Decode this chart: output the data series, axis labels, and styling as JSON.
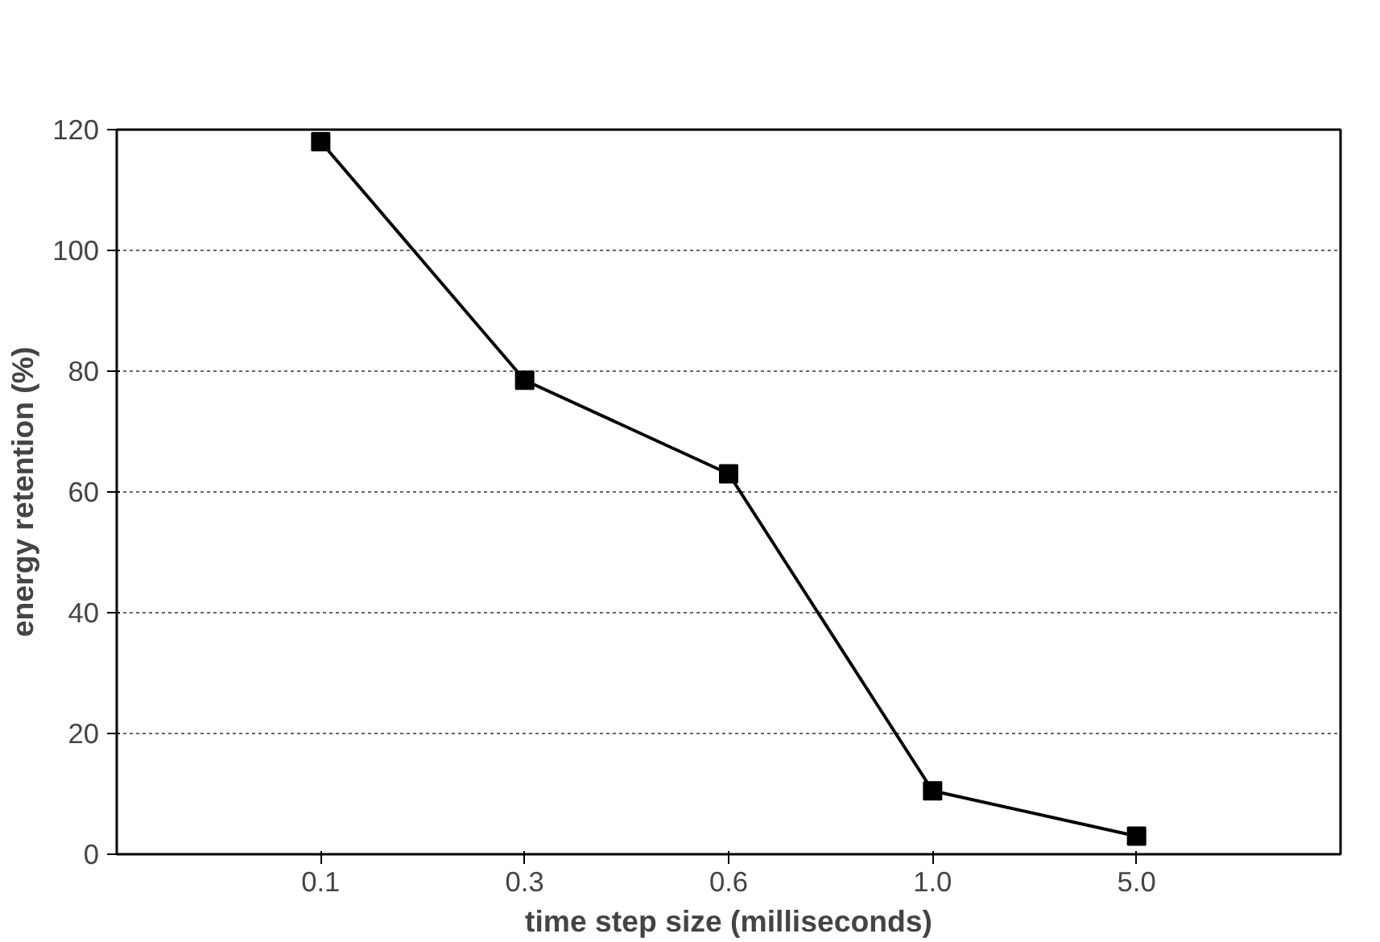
{
  "chart_data": {
    "type": "line",
    "xlabel": "time step size (milliseconds)",
    "ylabel": "energy retention (%)",
    "categories": [
      "0.1",
      "0.3",
      "0.6",
      "1.0",
      "5.0"
    ],
    "series": [
      {
        "color": "#000000",
        "values": [
          118,
          78.5,
          63,
          10.5,
          3
        ]
      }
    ],
    "ylim": [
      0,
      120
    ],
    "yticks": [
      0,
      20,
      40,
      60,
      80,
      100,
      120
    ],
    "grid": "y",
    "marker": "square",
    "line_style": "solid"
  }
}
